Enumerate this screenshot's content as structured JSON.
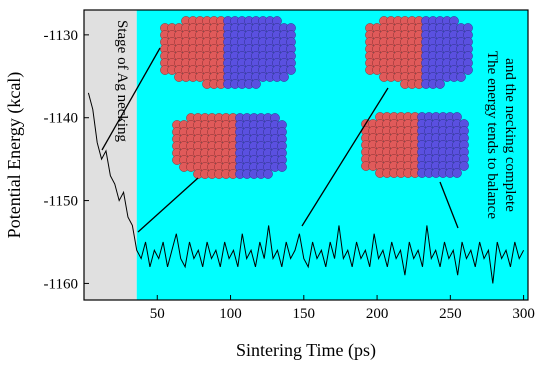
{
  "chart_data": {
    "type": "line",
    "xlabel": "Sintering Time (ps)",
    "ylabel": "Potential Energy (kcal)",
    "annotations": [
      "Stage of Ag necking",
      "The energy tends to balance",
      "and the necking complete"
    ],
    "shaded_regions": [
      {
        "x0": 0,
        "x1": 36,
        "color": "#e0e0e0"
      },
      {
        "x0": 36,
        "x1": 303,
        "color": "#00ffff"
      }
    ],
    "xlim": [
      0,
      303
    ],
    "ylim": [
      -1162,
      -1127
    ],
    "xticks": [
      50,
      100,
      150,
      200,
      250,
      300
    ],
    "yticks": [
      -1130,
      -1140,
      -1150,
      -1160
    ],
    "color": "#000000",
    "x": [
      3,
      6,
      9,
      12,
      15,
      18,
      21,
      24,
      27,
      30,
      33,
      36,
      39,
      42,
      45,
      48,
      51,
      54,
      57,
      60,
      63,
      66,
      69,
      72,
      75,
      78,
      81,
      84,
      87,
      90,
      93,
      96,
      99,
      102,
      105,
      108,
      111,
      114,
      117,
      120,
      123,
      126,
      129,
      132,
      135,
      138,
      141,
      144,
      147,
      150,
      153,
      156,
      159,
      162,
      165,
      168,
      171,
      174,
      177,
      180,
      183,
      186,
      189,
      192,
      195,
      198,
      201,
      204,
      207,
      210,
      213,
      216,
      219,
      222,
      225,
      228,
      231,
      234,
      237,
      240,
      243,
      246,
      249,
      252,
      255,
      258,
      261,
      264,
      267,
      270,
      273,
      276,
      279,
      282,
      285,
      288,
      291,
      294,
      297,
      300
    ],
    "values": [
      -1137,
      -1139,
      -1143,
      -1145,
      -1144,
      -1147,
      -1148,
      -1150,
      -1149,
      -1152,
      -1153,
      -1156,
      -1157,
      -1155,
      -1158,
      -1156,
      -1157,
      -1155,
      -1158,
      -1156,
      -1154,
      -1157,
      -1158,
      -1155,
      -1157,
      -1156,
      -1158,
      -1155,
      -1157,
      -1156,
      -1158,
      -1155,
      -1157,
      -1156,
      -1158,
      -1154,
      -1157,
      -1156,
      -1158,
      -1155,
      -1157,
      -1153,
      -1157,
      -1156,
      -1158,
      -1155,
      -1157,
      -1156,
      -1154,
      -1157,
      -1158,
      -1155,
      -1157,
      -1156,
      -1158,
      -1155,
      -1157,
      -1153,
      -1157,
      -1156,
      -1158,
      -1155,
      -1157,
      -1156,
      -1158,
      -1154,
      -1157,
      -1156,
      -1158,
      -1155,
      -1157,
      -1156,
      -1159,
      -1155,
      -1157,
      -1156,
      -1158,
      -1153,
      -1157,
      -1156,
      -1158,
      -1155,
      -1157,
      -1156,
      -1159,
      -1155,
      -1157,
      -1156,
      -1158,
      -1155,
      -1157,
      -1156,
      -1160,
      -1155,
      -1157,
      -1156,
      -1158,
      -1155,
      -1157,
      -1156
    ]
  }
}
